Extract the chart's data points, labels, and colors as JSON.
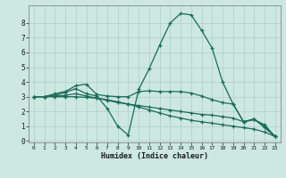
{
  "title": "",
  "xlabel": "Humidex (Indice chaleur)",
  "bg_color": "#cce8e0",
  "grid_color": "#b0cec8",
  "line_color": "#1a6b5a",
  "xlim": [
    -0.5,
    23.5
  ],
  "ylim": [
    -0.1,
    9.2
  ],
  "xticks": [
    0,
    1,
    2,
    3,
    4,
    5,
    6,
    7,
    8,
    9,
    10,
    11,
    12,
    13,
    14,
    15,
    16,
    17,
    18,
    19,
    20,
    21,
    22,
    23
  ],
  "yticks": [
    0,
    1,
    2,
    3,
    4,
    5,
    6,
    7,
    8
  ],
  "curve1_x": [
    0,
    1,
    2,
    3,
    4,
    5,
    6,
    7,
    8,
    9,
    10,
    11,
    12,
    13,
    14,
    15,
    16,
    17,
    18,
    19,
    20,
    21,
    22,
    23
  ],
  "curve1_y": [
    3.0,
    3.0,
    3.1,
    3.3,
    3.55,
    3.2,
    3.05,
    2.2,
    1.0,
    0.4,
    3.5,
    4.9,
    6.5,
    8.0,
    8.65,
    8.55,
    7.5,
    6.3,
    4.0,
    2.5,
    1.3,
    1.5,
    0.9,
    0.3
  ],
  "curve2_x": [
    0,
    1,
    2,
    3,
    4,
    5,
    6,
    7,
    8,
    9,
    10,
    11,
    12,
    13,
    14,
    15,
    16,
    17,
    18,
    19,
    20,
    21,
    22,
    23
  ],
  "curve2_y": [
    3.0,
    3.0,
    3.2,
    3.35,
    3.75,
    3.85,
    3.15,
    3.05,
    3.0,
    3.0,
    3.35,
    3.4,
    3.35,
    3.35,
    3.35,
    3.25,
    3.05,
    2.8,
    2.6,
    2.5,
    1.3,
    1.45,
    1.1,
    0.3
  ],
  "curve3_x": [
    0,
    1,
    2,
    3,
    4,
    5,
    6,
    7,
    8,
    9,
    10,
    11,
    12,
    13,
    14,
    15,
    16,
    17,
    18,
    19,
    20,
    21,
    22,
    23
  ],
  "curve3_y": [
    3.0,
    3.0,
    3.05,
    3.1,
    3.2,
    3.05,
    2.9,
    2.75,
    2.6,
    2.5,
    2.4,
    2.3,
    2.2,
    2.1,
    2.0,
    1.9,
    1.8,
    1.75,
    1.65,
    1.55,
    1.3,
    1.45,
    1.0,
    0.3
  ],
  "curve4_x": [
    0,
    1,
    2,
    3,
    4,
    5,
    6,
    7,
    8,
    9,
    10,
    11,
    12,
    13,
    14,
    15,
    16,
    17,
    18,
    19,
    20,
    21,
    22,
    23
  ],
  "curve4_y": [
    3.0,
    3.0,
    3.0,
    3.0,
    3.0,
    2.95,
    2.9,
    2.8,
    2.65,
    2.5,
    2.3,
    2.1,
    1.9,
    1.7,
    1.55,
    1.4,
    1.3,
    1.2,
    1.1,
    1.0,
    0.9,
    0.8,
    0.6,
    0.3
  ]
}
